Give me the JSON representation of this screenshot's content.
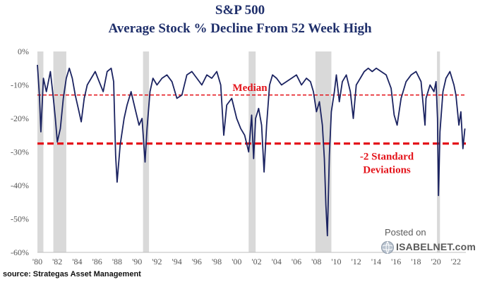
{
  "chart_data": {
    "type": "line",
    "title": "S&P 500",
    "subtitle": "Average Stock % Decline From 52 Week High",
    "xlabel": "",
    "ylabel": "",
    "xlim": [
      1980,
      2023
    ],
    "ylim": [
      -60,
      0
    ],
    "y_ticks": [
      0,
      -10,
      -20,
      -30,
      -40,
      -50,
      -60
    ],
    "y_tick_labels": [
      "0%",
      "-10%",
      "-20%",
      "-30%",
      "-40%",
      "-50%",
      "-60%"
    ],
    "x_ticks": [
      1980,
      1982,
      1984,
      1986,
      1988,
      1990,
      1992,
      1994,
      1996,
      1998,
      2000,
      2002,
      2004,
      2006,
      2008,
      2010,
      2012,
      2014,
      2016,
      2018,
      2020,
      2022
    ],
    "x_tick_labels": [
      "'80",
      "'82",
      "'84",
      "'86",
      "'88",
      "'90",
      "'92",
      "'94",
      "'96",
      "'98",
      "'00",
      "'02",
      "'04",
      "'06",
      "'08",
      "'10",
      "'12",
      "'14",
      "'16",
      "'18",
      "'20",
      "'22"
    ],
    "recessions": [
      [
        1980.0,
        1980.6
      ],
      [
        1981.6,
        1982.9
      ],
      [
        1990.6,
        1991.2
      ],
      [
        2001.2,
        2001.9
      ],
      [
        2007.9,
        2009.5
      ],
      [
        2020.1,
        2020.4
      ]
    ],
    "reference_lines": [
      {
        "label": "Median",
        "value": -13
      },
      {
        "label": "-2 Standard Deviations",
        "value": -27.5
      }
    ],
    "series": [
      {
        "name": "Average Stock % Decline From 52 Week High",
        "x": [
          1980.0,
          1980.2,
          1980.35,
          1980.6,
          1980.9,
          1981.3,
          1981.6,
          1981.8,
          1982.0,
          1982.3,
          1982.6,
          1982.9,
          1983.2,
          1983.5,
          1983.8,
          1984.1,
          1984.4,
          1984.7,
          1985.0,
          1985.4,
          1985.8,
          1986.2,
          1986.6,
          1987.0,
          1987.4,
          1987.65,
          1987.85,
          1988.0,
          1988.3,
          1988.7,
          1989.0,
          1989.4,
          1989.8,
          1990.2,
          1990.5,
          1990.8,
          1991.0,
          1991.3,
          1991.6,
          1992.0,
          1992.5,
          1993.0,
          1993.5,
          1994.0,
          1994.5,
          1995.0,
          1995.5,
          1996.0,
          1996.5,
          1997.0,
          1997.5,
          1998.0,
          1998.4,
          1998.7,
          1999.0,
          1999.5,
          2000.0,
          2000.4,
          2000.8,
          2001.2,
          2001.5,
          2001.7,
          2001.9,
          2002.2,
          2002.5,
          2002.75,
          2003.0,
          2003.3,
          2003.6,
          2004.0,
          2004.5,
          2005.0,
          2005.5,
          2006.0,
          2006.5,
          2007.0,
          2007.4,
          2007.7,
          2008.0,
          2008.3,
          2008.6,
          2008.8,
          2008.95,
          2009.1,
          2009.3,
          2009.5,
          2009.8,
          2010.0,
          2010.3,
          2010.6,
          2011.0,
          2011.4,
          2011.7,
          2012.0,
          2012.4,
          2012.8,
          2013.2,
          2013.6,
          2014.0,
          2014.5,
          2015.0,
          2015.5,
          2015.8,
          2016.1,
          2016.5,
          2017.0,
          2017.5,
          2018.0,
          2018.5,
          2018.9,
          2019.0,
          2019.4,
          2019.8,
          2020.0,
          2020.15,
          2020.25,
          2020.4,
          2020.7,
          2021.0,
          2021.4,
          2021.8,
          2022.0,
          2022.3,
          2022.5,
          2022.7,
          2022.9
        ],
        "values": [
          -4,
          -13,
          -24,
          -8,
          -12,
          -6,
          -14,
          -20,
          -27,
          -23,
          -14,
          -8,
          -5,
          -8,
          -13,
          -17,
          -21,
          -14,
          -10,
          -8,
          -6,
          -9,
          -12,
          -6,
          -5,
          -9,
          -31,
          -39,
          -28,
          -20,
          -16,
          -12,
          -17,
          -22,
          -20,
          -33,
          -23,
          -12,
          -8,
          -10,
          -8,
          -7,
          -9,
          -14,
          -13,
          -7,
          -6,
          -8,
          -10,
          -7,
          -8,
          -6,
          -10,
          -25,
          -16,
          -14,
          -20,
          -23,
          -25,
          -30,
          -19,
          -32,
          -20,
          -17,
          -22,
          -36,
          -22,
          -10,
          -7,
          -8,
          -10,
          -9,
          -8,
          -7,
          -10,
          -8,
          -9,
          -12,
          -18,
          -15,
          -22,
          -32,
          -46,
          -55,
          -31,
          -18,
          -12,
          -7,
          -15,
          -9,
          -7,
          -12,
          -20,
          -10,
          -8,
          -6,
          -5,
          -6,
          -5,
          -6,
          -7,
          -11,
          -19,
          -22,
          -14,
          -9,
          -7,
          -6,
          -9,
          -22,
          -14,
          -10,
          -12,
          -9,
          -20,
          -43,
          -24,
          -12,
          -8,
          -6,
          -10,
          -13,
          -22,
          -18,
          -29,
          -23
        ]
      }
    ]
  },
  "header": {
    "title": "S&P 500",
    "subtitle": "Average Stock % Decline From 52 Week High"
  },
  "annotations": {
    "median_label": "Median",
    "std_label_line1": "-2 Standard",
    "std_label_line2": "Deviations"
  },
  "footer": {
    "source": "source: Strategas Asset Management"
  },
  "watermark": {
    "posted": "Posted on",
    "site": "ISABELNET.com"
  },
  "colors": {
    "line": "#1b2361",
    "reference": "#e4141b",
    "recession": "#d9d9d9",
    "title": "#1f2f6b",
    "axis_text": "#555555"
  }
}
